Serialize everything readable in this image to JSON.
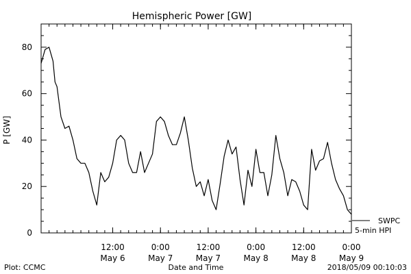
{
  "chart_data": {
    "type": "line",
    "title": "Hemispheric Power [GW]",
    "ylabel": "P [GW]",
    "xlabel": "Date and Time",
    "ylim": [
      0,
      90
    ],
    "xlim": [
      "2018-05-05 18:00",
      "2018-05-09 00:00"
    ],
    "y_ticks": [
      "0",
      "20",
      "40",
      "60",
      "80"
    ],
    "x_ticks": [
      {
        "time": "12:00",
        "date": "May 6",
        "at": "2018-05-06 12:00"
      },
      {
        "time": "0:00",
        "date": "May 7",
        "at": "2018-05-07 00:00"
      },
      {
        "time": "12:00",
        "date": "May 7",
        "at": "2018-05-07 12:00"
      },
      {
        "time": "0:00",
        "date": "May 8",
        "at": "2018-05-08 00:00"
      },
      {
        "time": "12:00",
        "date": "May 8",
        "at": "2018-05-08 12:00"
      },
      {
        "time": "0:00",
        "date": "May 9",
        "at": "2018-05-09 00:00"
      }
    ],
    "legend": [
      {
        "label": "SWPC",
        "color": "#000000"
      },
      {
        "label": "5-min HPI",
        "color": "#000000"
      }
    ],
    "series": [
      {
        "name": "5-min HPI",
        "color": "#000000",
        "points": [
          [
            "2018-05-05 18:00",
            73
          ],
          [
            "2018-05-05 19:00",
            79
          ],
          [
            "2018-05-05 20:00",
            80
          ],
          [
            "2018-05-05 21:00",
            74
          ],
          [
            "2018-05-05 21:30",
            65
          ],
          [
            "2018-05-05 22:00",
            63
          ],
          [
            "2018-05-05 23:00",
            50
          ],
          [
            "2018-05-06 00:00",
            45
          ],
          [
            "2018-05-06 01:00",
            46
          ],
          [
            "2018-05-06 02:00",
            40
          ],
          [
            "2018-05-06 03:00",
            32
          ],
          [
            "2018-05-06 04:00",
            30
          ],
          [
            "2018-05-06 05:00",
            30
          ],
          [
            "2018-05-06 06:00",
            26
          ],
          [
            "2018-05-06 07:00",
            18
          ],
          [
            "2018-05-06 08:00",
            12
          ],
          [
            "2018-05-06 09:00",
            26
          ],
          [
            "2018-05-06 10:00",
            22
          ],
          [
            "2018-05-06 11:00",
            24
          ],
          [
            "2018-05-06 12:00",
            30
          ],
          [
            "2018-05-06 13:00",
            40
          ],
          [
            "2018-05-06 14:00",
            42
          ],
          [
            "2018-05-06 15:00",
            40
          ],
          [
            "2018-05-06 16:00",
            30
          ],
          [
            "2018-05-06 17:00",
            26
          ],
          [
            "2018-05-06 18:00",
            26
          ],
          [
            "2018-05-06 19:00",
            35
          ],
          [
            "2018-05-06 20:00",
            26
          ],
          [
            "2018-05-06 21:00",
            30
          ],
          [
            "2018-05-06 22:00",
            34
          ],
          [
            "2018-05-06 23:00",
            48
          ],
          [
            "2018-05-07 00:00",
            50
          ],
          [
            "2018-05-07 01:00",
            48
          ],
          [
            "2018-05-07 02:00",
            42
          ],
          [
            "2018-05-07 03:00",
            38
          ],
          [
            "2018-05-07 04:00",
            38
          ],
          [
            "2018-05-07 05:00",
            43
          ],
          [
            "2018-05-07 06:00",
            50
          ],
          [
            "2018-05-07 07:00",
            40
          ],
          [
            "2018-05-07 08:00",
            28
          ],
          [
            "2018-05-07 09:00",
            20
          ],
          [
            "2018-05-07 10:00",
            22
          ],
          [
            "2018-05-07 11:00",
            16
          ],
          [
            "2018-05-07 12:00",
            23
          ],
          [
            "2018-05-07 13:00",
            14
          ],
          [
            "2018-05-07 14:00",
            10
          ],
          [
            "2018-05-07 15:00",
            21
          ],
          [
            "2018-05-07 16:00",
            33
          ],
          [
            "2018-05-07 17:00",
            40
          ],
          [
            "2018-05-07 18:00",
            34
          ],
          [
            "2018-05-07 19:00",
            37
          ],
          [
            "2018-05-07 20:00",
            23
          ],
          [
            "2018-05-07 21:00",
            12
          ],
          [
            "2018-05-07 22:00",
            27
          ],
          [
            "2018-05-07 23:00",
            20
          ],
          [
            "2018-05-08 00:00",
            36
          ],
          [
            "2018-05-08 01:00",
            26
          ],
          [
            "2018-05-08 02:00",
            26
          ],
          [
            "2018-05-08 03:00",
            16
          ],
          [
            "2018-05-08 04:00",
            25
          ],
          [
            "2018-05-08 05:00",
            42
          ],
          [
            "2018-05-08 06:00",
            32
          ],
          [
            "2018-05-08 07:00",
            26
          ],
          [
            "2018-05-08 08:00",
            16
          ],
          [
            "2018-05-08 09:00",
            23
          ],
          [
            "2018-05-08 10:00",
            22
          ],
          [
            "2018-05-08 11:00",
            18
          ],
          [
            "2018-05-08 12:00",
            12
          ],
          [
            "2018-05-08 13:00",
            10
          ],
          [
            "2018-05-08 14:00",
            36
          ],
          [
            "2018-05-08 15:00",
            27
          ],
          [
            "2018-05-08 16:00",
            31
          ],
          [
            "2018-05-08 17:00",
            32
          ],
          [
            "2018-05-08 18:00",
            39
          ],
          [
            "2018-05-08 19:00",
            30
          ],
          [
            "2018-05-08 20:00",
            23
          ],
          [
            "2018-05-08 21:00",
            19
          ],
          [
            "2018-05-08 22:00",
            16
          ],
          [
            "2018-05-08 23:00",
            10
          ],
          [
            "2018-05-09 00:00",
            8
          ]
        ]
      }
    ]
  },
  "footer": {
    "left": "Plot: CCMC",
    "center": "Date and Time",
    "right": "2018/05/09 00:10:03"
  }
}
